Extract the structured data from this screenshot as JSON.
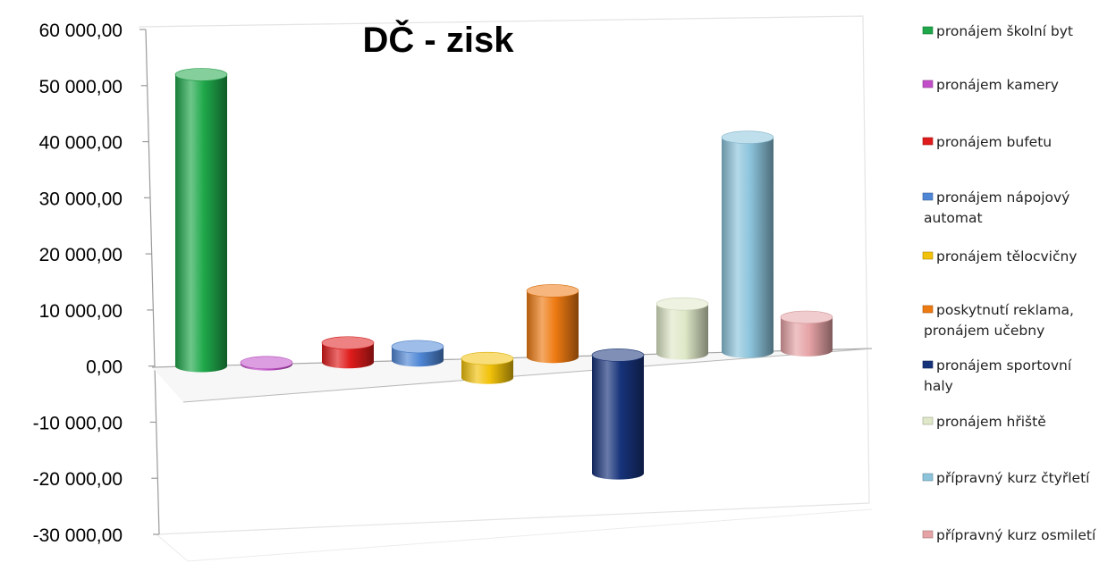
{
  "chart_data": {
    "type": "bar",
    "title": "DČ - zisk",
    "xlabel": "",
    "ylabel": "",
    "ylim": [
      -30000,
      60000
    ],
    "yticks": [
      60000,
      50000,
      40000,
      30000,
      20000,
      10000,
      0,
      -10000,
      -20000,
      -30000
    ],
    "ytick_labels": [
      "60 000,00",
      "50 000,00",
      "40 000,00",
      "30 000,00",
      "20 000,00",
      "10 000,00",
      "0,00",
      "-10 000,00",
      "-20 000,00",
      "-30 000,00"
    ],
    "grid": false,
    "legend_position": "right",
    "series": [
      {
        "name": "pronájem školní byt",
        "lines": [
          "pronájem školní byt"
        ],
        "value": 53000,
        "color": "#1fa84a"
      },
      {
        "name": "pronájem kamery",
        "lines": [
          "pronájem kamery"
        ],
        "value": 300,
        "color": "#c24fc9"
      },
      {
        "name": "pronájem    bufetu",
        "lines": [
          "pronájem    bufetu"
        ],
        "value": 3500,
        "color": "#e01b1b"
      },
      {
        "name": "pronájem nápojový automat",
        "lines": [
          "pronájem nápojový",
          "automat"
        ],
        "value": 2500,
        "color": "#4f87d6"
      },
      {
        "name": "pronájem tělocvičny",
        "lines": [
          "pronájem tělocvičny"
        ],
        "value": -3500,
        "color": "#f2c20a"
      },
      {
        "name": "poskytnutí reklama, pronájem učebny",
        "lines": [
          "poskytnutí reklama,",
          "pronájem učebny"
        ],
        "value": 12000,
        "color": "#ee7a12"
      },
      {
        "name": "pronájem  sportovní haly",
        "lines": [
          "pronájem  sportovní",
          "haly"
        ],
        "value": -21500,
        "color": "#17337a"
      },
      {
        "name": "pronájem  hřiště",
        "lines": [
          "pronájem  hřiště"
        ],
        "value": 9000,
        "color": "#dfe8c8"
      },
      {
        "name": "přípravný kurz čtyřletí",
        "lines": [
          "přípravný kurz čtyřletí"
        ],
        "value": 39000,
        "color": "#8cc4dc"
      },
      {
        "name": "přípravný kurz osmiletí",
        "lines": [
          "přípravný kurz osmiletí"
        ],
        "value": 6000,
        "color": "#e6a3a6"
      }
    ]
  }
}
